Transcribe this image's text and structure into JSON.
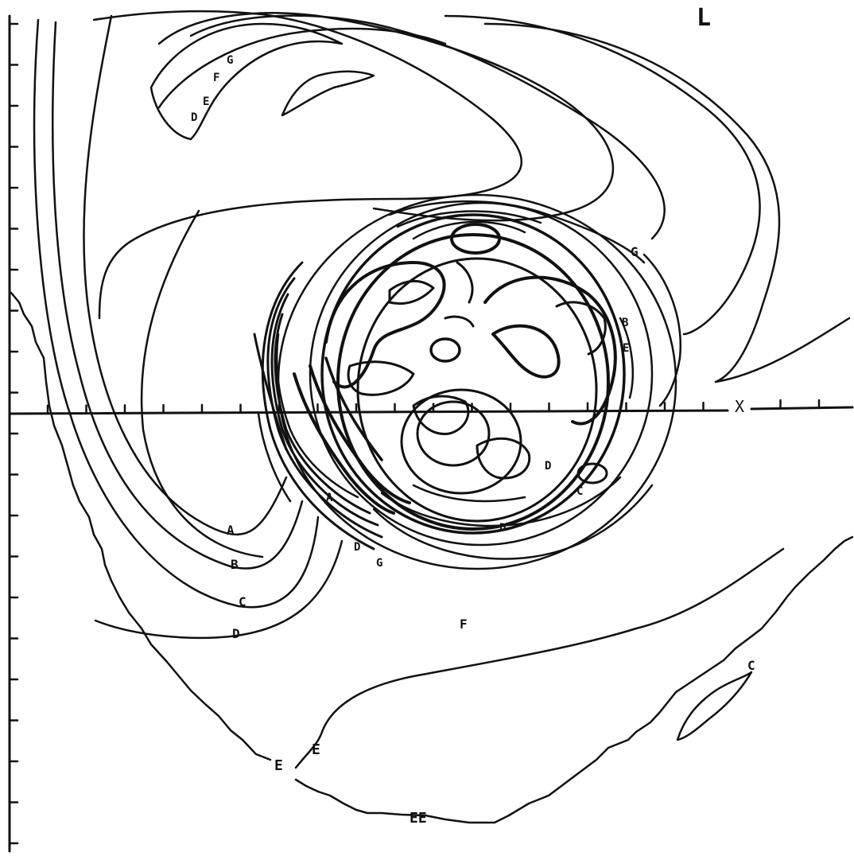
{
  "figure": {
    "corner_label": "L",
    "axis_label": "X",
    "contour_labels": {
      "a": "A",
      "b": "B",
      "c": "C",
      "d": "D",
      "e": "E",
      "f": "F",
      "g": "G",
      "ee": "EE"
    }
  }
}
